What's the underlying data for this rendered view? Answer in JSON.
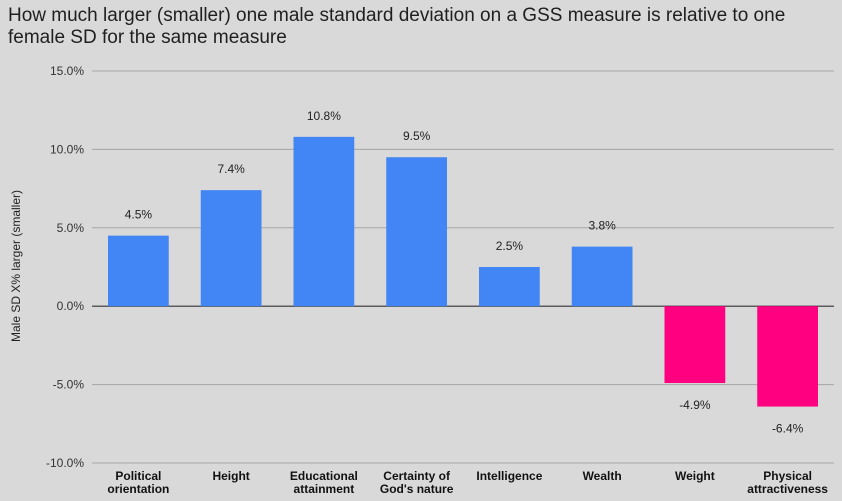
{
  "chart_data": {
    "type": "bar",
    "title": "How much larger (smaller) one male standard deviation on a GSS measure is relative to one female SD for the same measure",
    "xlabel": "",
    "ylabel": "Male SD X% larger (smaller)",
    "ylim": [
      -10,
      15
    ],
    "yticks": [
      15,
      10,
      5,
      0,
      -5,
      -10
    ],
    "ytick_labels": [
      "15.0%",
      "10.0%",
      "5.0%",
      "0.0%",
      "-5.0%",
      "-10.0%"
    ],
    "categories": [
      [
        "Political",
        "orientation"
      ],
      [
        "Height"
      ],
      [
        "Educational",
        "attainment"
      ],
      [
        "Certainty of",
        "God's nature"
      ],
      [
        "Intelligence"
      ],
      [
        "Wealth"
      ],
      [
        "Weight"
      ],
      [
        "Physical",
        "attractiveness"
      ]
    ],
    "values": [
      4.5,
      7.4,
      10.8,
      9.5,
      2.5,
      3.8,
      -4.9,
      -6.4
    ],
    "data_labels": [
      "4.5%",
      "7.4%",
      "10.8%",
      "9.5%",
      "2.5%",
      "3.8%",
      "-4.9%",
      "-6.4%"
    ],
    "grid": true,
    "colors": {
      "positive": "#4285f4",
      "negative": "#ff0080",
      "background": "#d9d9d9",
      "grid": "#a6a6a6",
      "zero_line": "#333333"
    }
  }
}
